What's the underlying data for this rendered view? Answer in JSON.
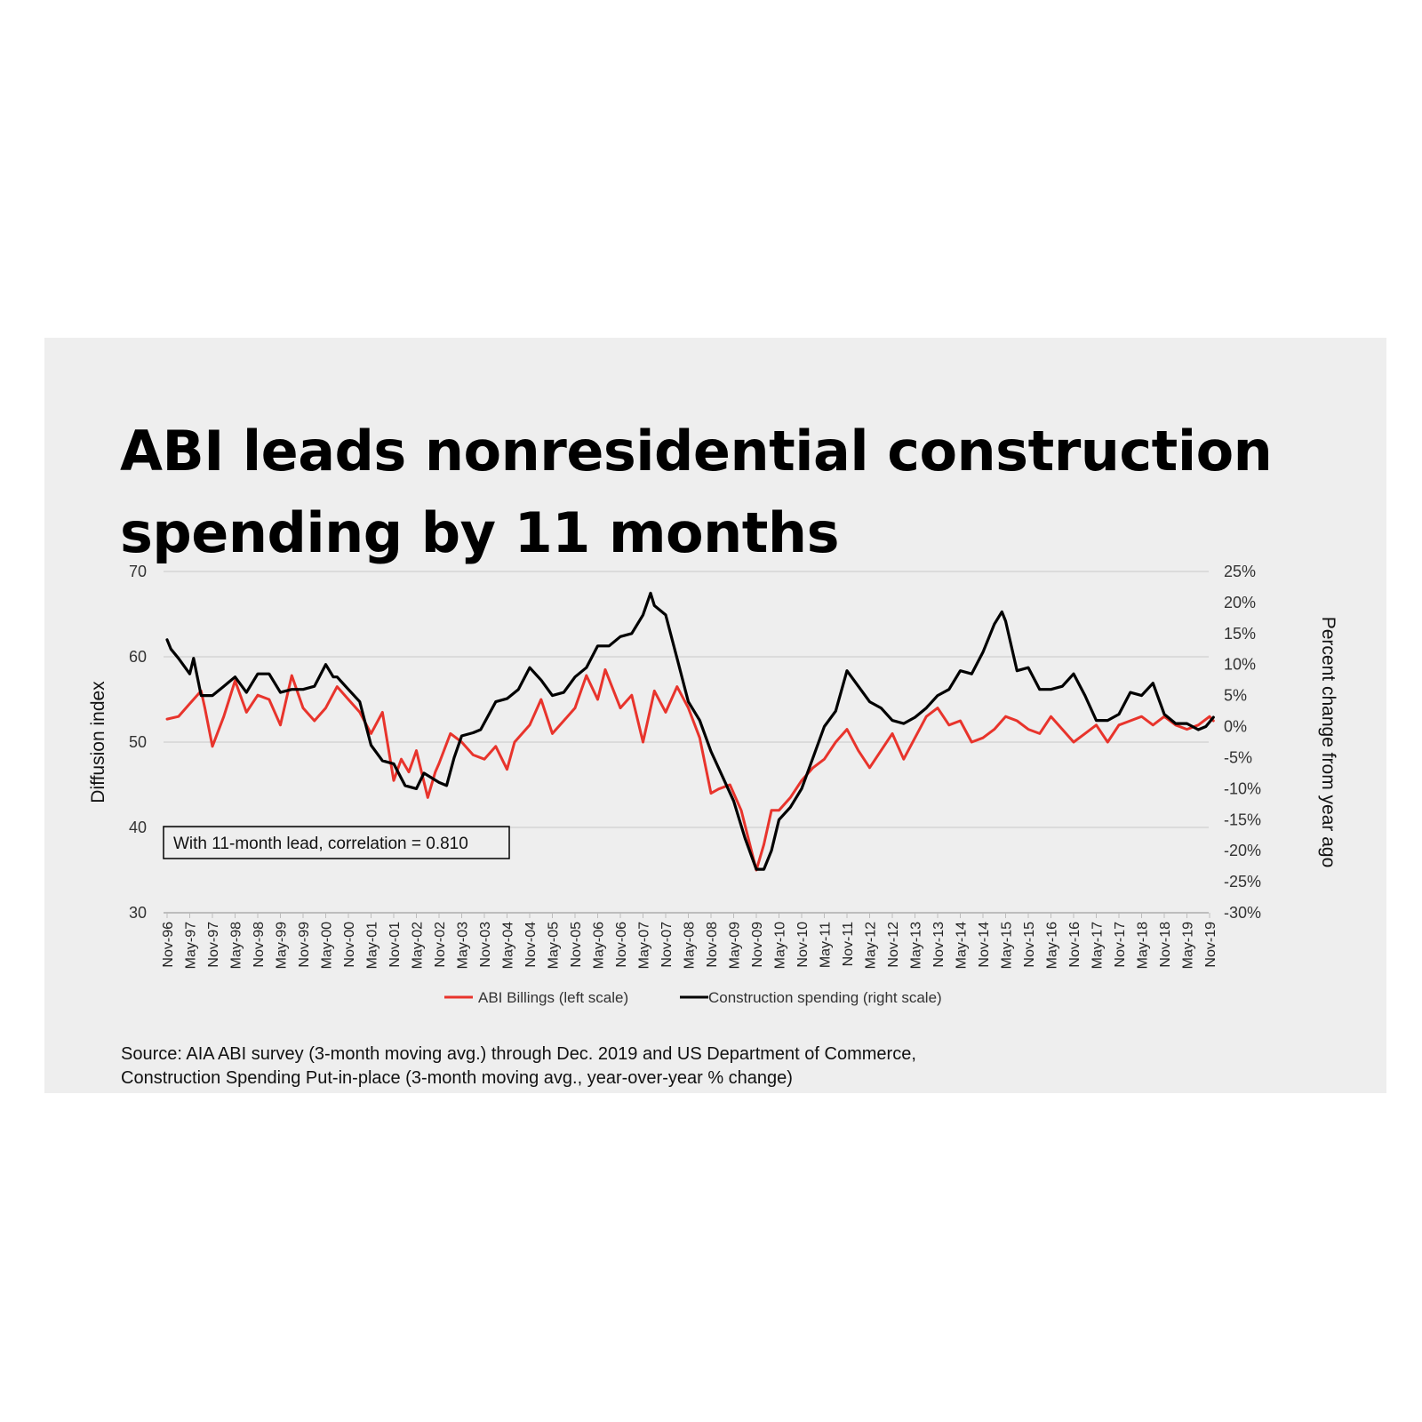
{
  "title": "ABI leads nonresidential construction spending by 11 months",
  "source_line1": "Source: AIA ABI survey (3-month moving avg.) through Dec. 2019 and US Department of Commerce,",
  "source_line2": "Construction Spending Put-in-place (3-month moving avg., year-over-year % change)",
  "colors": {
    "abi": "#e8342c",
    "construction": "#000000",
    "grid": "#d0d0d0",
    "panel": "#eeeeee"
  },
  "chart_data": {
    "type": "line",
    "y_left": {
      "label": "Diffusion index",
      "min": 30,
      "max": 70,
      "ticks": [
        "30",
        "40",
        "50",
        "60",
        "70"
      ]
    },
    "y_right": {
      "label": "Percent change from year ago",
      "min": -30,
      "max": 25,
      "ticks": [
        "-30%",
        "-25%",
        "-20%",
        "-15%",
        "-10%",
        "-5%",
        "0%",
        "5%",
        "10%",
        "15%",
        "20%",
        "25%"
      ]
    },
    "x_tick_labels": [
      "Nov-96",
      "May-97",
      "Nov-97",
      "May-98",
      "Nov-98",
      "May-99",
      "Nov-99",
      "May-00",
      "Nov-00",
      "May-01",
      "Nov-01",
      "May-02",
      "Nov-02",
      "May-03",
      "Nov-03",
      "May-04",
      "Nov-04",
      "May-05",
      "Nov-05",
      "May-06",
      "Nov-06",
      "May-07",
      "Nov-07",
      "May-08",
      "Nov-08",
      "May-09",
      "Nov-09",
      "May-10",
      "Nov-10",
      "May-11",
      "Nov-11",
      "May-12",
      "Nov-12",
      "May-13",
      "Nov-13",
      "May-14",
      "Nov-14",
      "May-15",
      "Nov-15",
      "May-16",
      "Nov-16",
      "May-17",
      "Nov-17",
      "May-18",
      "Nov-18",
      "May-19",
      "Nov-19"
    ],
    "grid": true,
    "legend_position": "bottom-center",
    "annotation": "With 11-month lead, correlation = 0.810",
    "series": [
      {
        "name": "ABI Billings (left scale)",
        "axis": "left",
        "x": [
          "Nov-96",
          "Feb-97",
          "May-97",
          "Aug-97",
          "Sep-97",
          "Nov-97",
          "Feb-98",
          "May-98",
          "Aug-98",
          "Nov-98",
          "Feb-99",
          "May-99",
          "Aug-99",
          "Nov-99",
          "Feb-00",
          "May-00",
          "Aug-00",
          "Nov-00",
          "Feb-01",
          "May-01",
          "Aug-01",
          "Nov-01",
          "Jan-02",
          "Mar-02",
          "May-02",
          "Aug-02",
          "Oct-02",
          "Nov-02",
          "Feb-03",
          "May-03",
          "Aug-03",
          "Nov-03",
          "Feb-04",
          "May-04",
          "Jul-04",
          "Nov-04",
          "Feb-05",
          "May-05",
          "Aug-05",
          "Nov-05",
          "Feb-06",
          "May-06",
          "Jul-06",
          "Nov-06",
          "Feb-07",
          "May-07",
          "Aug-07",
          "Nov-07",
          "Feb-08",
          "May-08",
          "Aug-08",
          "Nov-08",
          "Jan-09",
          "Apr-09",
          "Jul-09",
          "Nov-09",
          "Jan-10",
          "Mar-10",
          "May-10",
          "Aug-10",
          "Nov-10",
          "Feb-11",
          "May-11",
          "Aug-11",
          "Nov-11",
          "Feb-12",
          "May-12",
          "Aug-12",
          "Nov-12",
          "Feb-13",
          "May-13",
          "Aug-13",
          "Nov-13",
          "Feb-14",
          "May-14",
          "Aug-14",
          "Nov-14",
          "Feb-15",
          "May-15",
          "Aug-15",
          "Nov-15",
          "Feb-16",
          "May-16",
          "Aug-16",
          "Nov-16",
          "Feb-17",
          "May-17",
          "Aug-17",
          "Nov-17",
          "Feb-18",
          "May-18",
          "Aug-18",
          "Nov-18",
          "Feb-19",
          "May-19",
          "Aug-19",
          "Nov-19",
          "Dec-19"
        ],
        "y": [
          52.7,
          53.0,
          54.5,
          56.0,
          54.0,
          49.5,
          53.0,
          57.2,
          53.5,
          55.5,
          55.0,
          52.0,
          57.8,
          54.0,
          52.5,
          54.0,
          56.5,
          55.0,
          53.5,
          51.0,
          53.5,
          45.5,
          48.0,
          46.5,
          49.0,
          43.5,
          46.5,
          47.5,
          51.0,
          50.0,
          48.5,
          48.0,
          49.5,
          46.8,
          50.0,
          52.0,
          55.0,
          51.0,
          52.5,
          54.0,
          57.8,
          55.0,
          58.5,
          54.0,
          55.5,
          50.0,
          56.0,
          53.5,
          56.5,
          54.0,
          50.5,
          44.0,
          44.5,
          45.0,
          42.0,
          35.0,
          38.0,
          42.0,
          42.0,
          43.5,
          45.5,
          47.0,
          48.0,
          50.0,
          51.5,
          49.0,
          47.0,
          49.0,
          51.0,
          48.0,
          50.5,
          53.0,
          54.0,
          52.0,
          52.5,
          50.0,
          50.5,
          51.5,
          53.0,
          52.5,
          51.5,
          51.0,
          53.0,
          51.5,
          50.0,
          51.0,
          52.0,
          50.0,
          52.0,
          52.5,
          53.0,
          52.0,
          53.0,
          52.0,
          51.5,
          52.0,
          53.0,
          52.5
        ]
      },
      {
        "name": "Construction spending (right scale)",
        "axis": "right",
        "x": [
          "Nov-96",
          "Dec-96",
          "Feb-97",
          "May-97",
          "Jun-97",
          "Aug-97",
          "Nov-97",
          "Feb-98",
          "May-98",
          "Aug-98",
          "Nov-98",
          "Feb-99",
          "May-99",
          "Aug-99",
          "Nov-99",
          "Feb-00",
          "May-00",
          "Jul-00",
          "Aug-00",
          "Nov-00",
          "Feb-01",
          "May-01",
          "Aug-01",
          "Nov-01",
          "Feb-02",
          "May-02",
          "Jul-02",
          "Nov-02",
          "Jan-03",
          "Mar-03",
          "May-03",
          "Aug-03",
          "Oct-03",
          "Feb-04",
          "May-04",
          "Aug-04",
          "Nov-04",
          "Feb-05",
          "May-05",
          "Aug-05",
          "Nov-05",
          "Feb-06",
          "May-06",
          "Aug-06",
          "Nov-06",
          "Feb-07",
          "May-07",
          "Jul-07",
          "Aug-07",
          "Nov-07",
          "Feb-08",
          "May-08",
          "Aug-08",
          "Nov-08",
          "Feb-09",
          "May-09",
          "Aug-09",
          "Nov-09",
          "Jan-10",
          "Mar-10",
          "May-10",
          "Aug-10",
          "Nov-10",
          "Feb-11",
          "May-11",
          "Aug-11",
          "Nov-11",
          "Feb-12",
          "May-12",
          "Aug-12",
          "Nov-12",
          "Feb-13",
          "May-13",
          "Aug-13",
          "Nov-13",
          "Feb-14",
          "May-14",
          "Aug-14",
          "Nov-14",
          "Feb-15",
          "Apr-15",
          "May-15",
          "Aug-15",
          "Nov-15",
          "Feb-16",
          "May-16",
          "Aug-16",
          "Nov-16",
          "Feb-17",
          "May-17",
          "Aug-17",
          "Nov-17",
          "Feb-18",
          "May-18",
          "Aug-18",
          "Nov-18",
          "Feb-19",
          "May-19",
          "Aug-19",
          "Oct-19",
          "Dec-19"
        ],
        "y": [
          14.0,
          12.5,
          11.0,
          8.5,
          11.0,
          5.0,
          5.0,
          6.5,
          8.0,
          5.5,
          8.5,
          8.5,
          5.5,
          6.0,
          6.0,
          6.5,
          10.0,
          8.0,
          8.0,
          6.0,
          4.0,
          -3.0,
          -5.5,
          -6.0,
          -9.5,
          -10.0,
          -7.5,
          -9.0,
          -9.5,
          -5.0,
          -1.5,
          -1.0,
          -0.5,
          4.0,
          4.5,
          6.0,
          9.5,
          7.5,
          5.0,
          5.5,
          8.0,
          9.5,
          13.0,
          13.0,
          14.5,
          15.0,
          18.0,
          21.5,
          19.5,
          18.0,
          11.0,
          4.0,
          1.0,
          -4.0,
          -8.0,
          -12.0,
          -18.0,
          -23.0,
          -23.0,
          -20.0,
          -15.0,
          -13.0,
          -10.0,
          -5.0,
          0.0,
          2.5,
          9.0,
          6.5,
          4.0,
          3.0,
          1.0,
          0.5,
          1.5,
          3.0,
          5.0,
          6.0,
          9.0,
          8.5,
          12.0,
          16.5,
          18.5,
          17.0,
          9.0,
          9.5,
          6.0,
          6.0,
          6.5,
          8.5,
          5.0,
          1.0,
          1.0,
          2.0,
          5.5,
          5.0,
          7.0,
          2.0,
          0.5,
          0.5,
          -0.5,
          0.0,
          1.5
        ]
      }
    ]
  }
}
